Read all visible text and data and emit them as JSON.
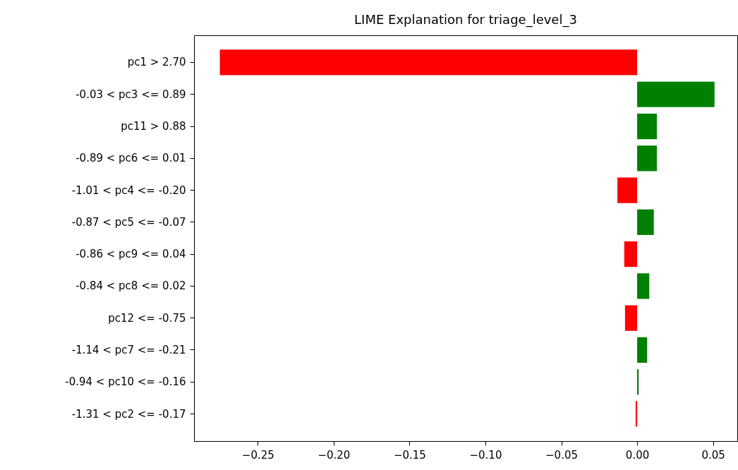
{
  "chart_data": {
    "type": "bar",
    "orientation": "horizontal",
    "title": "LIME Explanation for triage_level_3",
    "categories": [
      "pc1 > 2.70",
      "-0.03 < pc3 <= 0.89",
      "pc11 > 0.88",
      "-0.89 < pc6 <= 0.01",
      "-1.01 < pc4 <= -0.20",
      "-0.87 < pc5 <= -0.07",
      "-0.86 < pc9 <= 0.04",
      "-0.84 < pc8 <= 0.02",
      "pc12 <= -0.75",
      "-1.14 < pc7 <= -0.21",
      "-0.94 < pc10 <= -0.16",
      "-1.31 < pc2 <= -0.17"
    ],
    "values": [
      -0.275,
      0.051,
      0.013,
      0.013,
      -0.013,
      0.011,
      -0.0085,
      0.008,
      -0.008,
      0.0066,
      0.001,
      -0.001
    ],
    "colors": [
      "#ff0000",
      "#008000",
      "#008000",
      "#008000",
      "#ff0000",
      "#008000",
      "#ff0000",
      "#008000",
      "#ff0000",
      "#008000",
      "#008000",
      "#ff0000"
    ],
    "xlim": [
      -0.292,
      0.066
    ],
    "xticks": [
      {
        "value": -0.25,
        "label": "−0.25"
      },
      {
        "value": -0.2,
        "label": "−0.20"
      },
      {
        "value": -0.15,
        "label": "−0.15"
      },
      {
        "value": -0.1,
        "label": "−0.10"
      },
      {
        "value": -0.05,
        "label": "−0.05"
      },
      {
        "value": 0,
        "label": "0.00"
      },
      {
        "value": 0.05,
        "label": "0.05"
      }
    ],
    "grid": false
  }
}
